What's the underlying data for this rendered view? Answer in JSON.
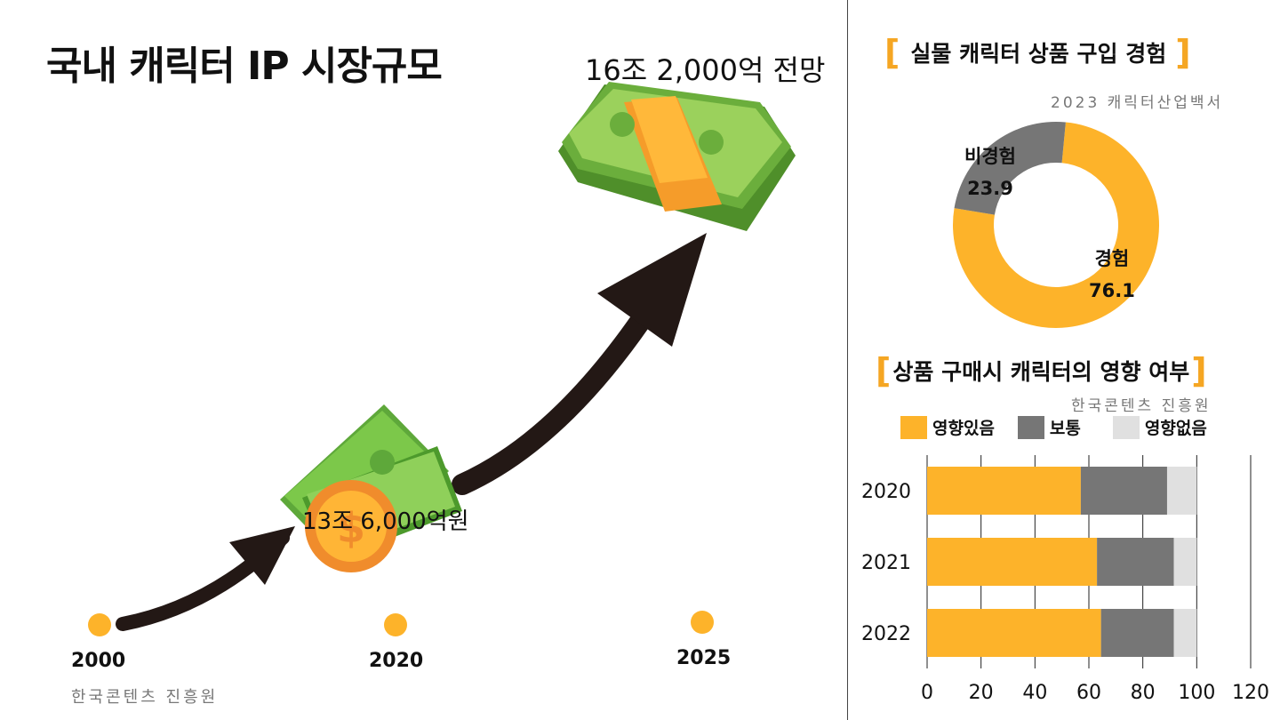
{
  "left": {
    "title": "국내 캐릭터 IP 시장규모",
    "value_2020": "13조 6,000억원",
    "value_2025": "16조 2,000억 전망",
    "source": "한국콘텐츠 진흥원",
    "timeline": [
      {
        "year": "2000"
      },
      {
        "year": "2020"
      },
      {
        "year": "2025"
      }
    ]
  },
  "donut": {
    "title": "실물 캐릭터 상품 구입 경험",
    "source": "2023 캐릭터산업백서"
  },
  "bar": {
    "title": "상품 구매시 캐릭터의 영향 여부",
    "source": "한국콘텐츠 진흥원"
  },
  "colors": {
    "orange": "#fdb32a",
    "gray": "#767676",
    "lightgray": "#e0e0e0",
    "bracket": "#f5a623"
  },
  "chart_data": [
    {
      "type": "pie",
      "title": "실물 캐릭터 상품 구입 경험",
      "slices": [
        {
          "label": "경험",
          "value": 76.1,
          "value_text": "76.1"
        },
        {
          "label": "비경험",
          "value": 23.9,
          "value_text": "23.9"
        }
      ]
    },
    {
      "type": "bar",
      "orientation": "horizontal",
      "stacked": true,
      "title": "상품 구매시 캐릭터의 영향 여부",
      "categories": [
        "2020",
        "2021",
        "2022"
      ],
      "series": [
        {
          "name": "영향있음",
          "values": [
            57,
            63,
            64.5
          ]
        },
        {
          "name": "보통",
          "values": [
            32,
            28.5,
            27
          ]
        },
        {
          "name": "영향없음",
          "values": [
            11,
            8.5,
            8.5
          ]
        }
      ],
      "xlim": [
        0,
        120
      ],
      "xticks": [
        "0",
        "20",
        "40",
        "60",
        "80",
        "100",
        "120"
      ],
      "grid": true,
      "legend": "top"
    }
  ]
}
